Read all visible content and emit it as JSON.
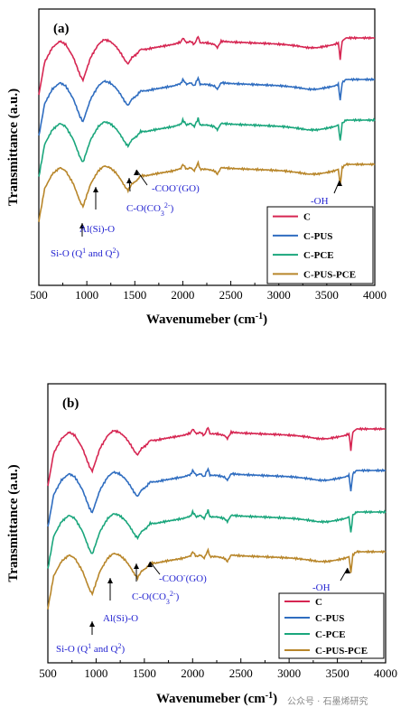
{
  "chart_data": [
    {
      "type": "line",
      "panel_label": "(a)",
      "xlabel": "Wavenumeber (cm",
      "xlabel_sup": "-1",
      "xlabel_close": ")",
      "ylabel": "Transmittance (a.u.)",
      "xlim": [
        500,
        4000
      ],
      "xticks": [
        "500",
        "1000",
        "1500",
        "2000",
        "2500",
        "3000",
        "3500",
        "4000"
      ],
      "y_ticks_shown": false,
      "grid": false,
      "legend_position": "bottom-right",
      "series": [
        {
          "name": "C",
          "color": "#d62652"
        },
        {
          "name": "C-PUS",
          "color": "#2f6dc0"
        },
        {
          "name": "C-PCE",
          "color": "#1aa67c"
        },
        {
          "name": "C-PUS-PCE",
          "color": "#b8862a"
        }
      ],
      "annotations": [
        {
          "text": "Si-O (Q",
          "sup1": "1",
          "mid": " and Q",
          "sup2": "2",
          "end": ")",
          "x": 950
        },
        {
          "text": "Al(Si)-O",
          "x": 1110
        },
        {
          "text": "C-O(CO",
          "sub": "3",
          "sup": "2-",
          "end": ")",
          "x": 1420
        },
        {
          "text": "-COO",
          "sup": "-",
          "end": "(GO)",
          "x": 1570
        },
        {
          "text": "-OH",
          "x": 3640
        }
      ]
    },
    {
      "type": "line",
      "panel_label": "(b)",
      "xlabel": "Wavenumeber (cm",
      "xlabel_sup": "-1",
      "xlabel_close": ")",
      "ylabel": "Transmittance (a.u.)",
      "xlim": [
        500,
        4000
      ],
      "xticks": [
        "500",
        "1000",
        "1500",
        "2000",
        "2500",
        "3000",
        "3500",
        "4000"
      ],
      "y_ticks_shown": false,
      "grid": false,
      "legend_position": "bottom-right",
      "series": [
        {
          "name": "C",
          "color": "#d62652"
        },
        {
          "name": "C-PUS",
          "color": "#2f6dc0"
        },
        {
          "name": "C-PCE",
          "color": "#1aa67c"
        },
        {
          "name": "C-PUS-PCE",
          "color": "#b8862a"
        }
      ],
      "annotations": [
        {
          "text": "Si-O (Q",
          "sup1": "1",
          "mid": " and Q",
          "sup2": "2",
          "end": ")",
          "x": 960
        },
        {
          "text": "Al(Si)-O",
          "x": 1120
        },
        {
          "text": "C-O(CO",
          "sub": "3",
          "sup": "2-",
          "end": ")",
          "x": 1430
        },
        {
          "text": "-COO",
          "sup": "-",
          "end": "(GO)",
          "x": 1560
        },
        {
          "text": "-OH",
          "x": 3640
        }
      ]
    }
  ],
  "watermark": "公众号 · 石墨烯研究"
}
